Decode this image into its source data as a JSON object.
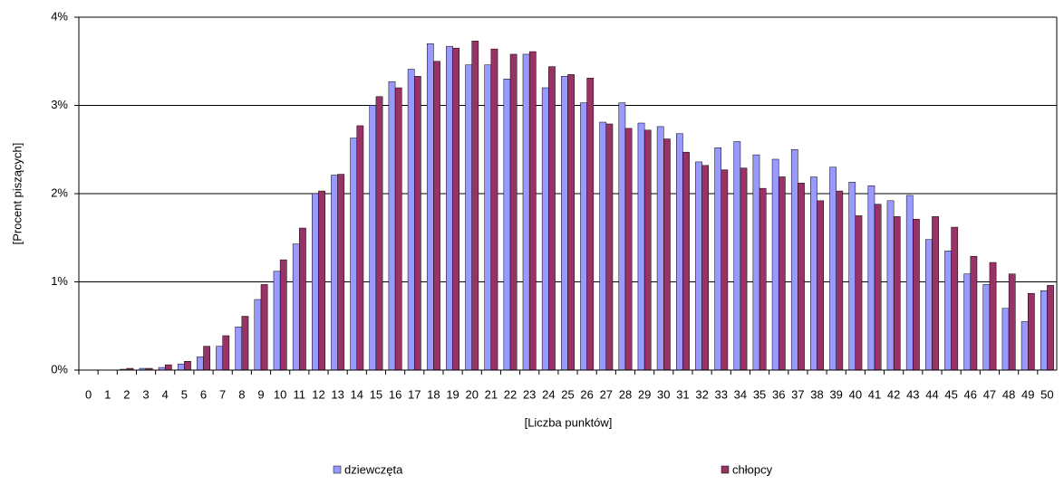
{
  "chart_data": {
    "type": "bar",
    "categories": [
      "0",
      "1",
      "2",
      "3",
      "4",
      "5",
      "6",
      "7",
      "8",
      "9",
      "10",
      "11",
      "12",
      "13",
      "14",
      "15",
      "16",
      "17",
      "18",
      "19",
      "20",
      "21",
      "22",
      "23",
      "24",
      "25",
      "26",
      "27",
      "28",
      "29",
      "30",
      "31",
      "32",
      "33",
      "34",
      "35",
      "36",
      "37",
      "38",
      "39",
      "40",
      "41",
      "42",
      "43",
      "44",
      "45",
      "46",
      "47",
      "48",
      "49",
      "50"
    ],
    "series": [
      {
        "name": "dziewczęta",
        "color": "#9999ff",
        "values": [
          0,
          0,
          0.01,
          0.02,
          0.03,
          0.07,
          0.15,
          0.27,
          0.49,
          0.8,
          1.12,
          1.43,
          2.0,
          2.21,
          2.63,
          3.0,
          3.27,
          3.41,
          3.7,
          3.67,
          3.46,
          3.46,
          3.3,
          3.58,
          3.2,
          3.33,
          3.03,
          2.81,
          3.03,
          2.8,
          2.76,
          2.68,
          2.36,
          2.52,
          2.59,
          2.44,
          2.39,
          2.5,
          2.19,
          2.3,
          2.13,
          2.09,
          1.92,
          1.98,
          1.48,
          1.35,
          1.09,
          0.97,
          0.7,
          0.55,
          0.9
        ]
      },
      {
        "name": "chłopcy",
        "color": "#993366",
        "values": [
          0,
          0,
          0.02,
          0.02,
          0.06,
          0.1,
          0.27,
          0.39,
          0.61,
          0.97,
          1.25,
          1.61,
          2.03,
          2.22,
          2.77,
          3.1,
          3.2,
          3.33,
          3.5,
          3.65,
          3.73,
          3.64,
          3.58,
          3.61,
          3.44,
          3.35,
          3.31,
          2.79,
          2.74,
          2.72,
          2.62,
          2.47,
          2.32,
          2.27,
          2.29,
          2.06,
          2.19,
          2.12,
          1.92,
          2.03,
          1.75,
          1.88,
          1.74,
          1.71,
          1.74,
          1.62,
          1.29,
          1.22,
          1.09,
          0.87,
          0.96
        ]
      }
    ],
    "x_label": "[Liczba punktów]",
    "y_label": "[Procent piszących]",
    "ylim": [
      0,
      4
    ],
    "yticks": [
      {
        "value": 0,
        "label": "0%"
      },
      {
        "value": 1,
        "label": "1%"
      },
      {
        "value": 2,
        "label": "2%"
      },
      {
        "value": 3,
        "label": "3%"
      },
      {
        "value": 4,
        "label": "4%"
      }
    ],
    "grid": true,
    "legend": "bottom"
  }
}
